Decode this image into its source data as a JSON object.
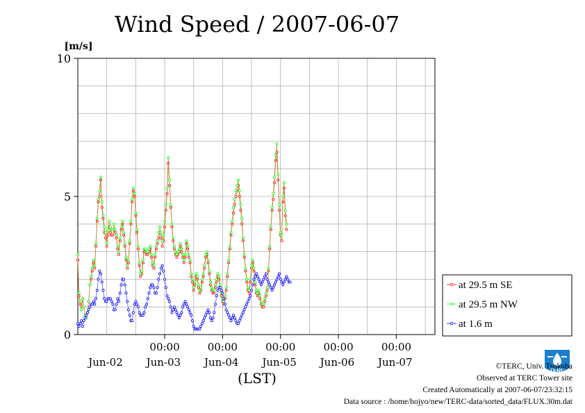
{
  "chart_data": {
    "type": "line",
    "title": "Wind Speed / 2007-06-07",
    "ylabel": "[m/s]",
    "xlabel": "(LST)",
    "ylim": [
      0,
      10
    ],
    "yticks": [
      0,
      5,
      10
    ],
    "xlim": [
      "2007-06-01T12:00",
      "2007-06-07T16:00"
    ],
    "x_time_ticks": [
      "00:00",
      "00:00",
      "00:00",
      "00:00",
      "00:00"
    ],
    "x_date_labels": [
      "Jun-02",
      "Jun-03",
      "Jun-04",
      "Jun-05",
      "Jun-06",
      "Jun-07"
    ],
    "grid": true,
    "legend_position": "right",
    "series": [
      {
        "name": "at 29.5 m SE",
        "color": "#ff0000",
        "x_start": "2007-06-01T12:00",
        "step_minutes": 30,
        "values": [
          2.7,
          1.4,
          1.1,
          0.9,
          1.3,
          1.0,
          0.7,
          0.6,
          0.8,
          1.2,
          1.8,
          2.0,
          2.3,
          2.6,
          2.4,
          3.2,
          4.1,
          4.8,
          5.0,
          5.6,
          4.6,
          4.2,
          3.7,
          3.5,
          3.2,
          3.6,
          3.9,
          3.7,
          3.6,
          3.6,
          3.8,
          3.7,
          3.5,
          3.1,
          2.9,
          3.4,
          3.8,
          4.0,
          3.6,
          3.2,
          2.7,
          2.4,
          2.6,
          3.3,
          4.0,
          4.8,
          5.2,
          5.0,
          4.3,
          3.7,
          3.1,
          2.5,
          2.1,
          2.2,
          2.6,
          3.0,
          3.0,
          2.9,
          2.9,
          3.0,
          3.1,
          2.8,
          2.5,
          2.4,
          2.8,
          3.1,
          3.3,
          3.5,
          3.7,
          3.5,
          3.2,
          3.4,
          3.9,
          4.5,
          5.1,
          6.2,
          5.4,
          4.6,
          3.9,
          3.4,
          3.1,
          2.9,
          2.8,
          2.9,
          3.0,
          3.2,
          3.0,
          2.8,
          2.6,
          2.8,
          3.3,
          3.1,
          2.8,
          2.6,
          2.1,
          1.9,
          1.6,
          1.8,
          2.1,
          2.0,
          1.7,
          1.5,
          1.6,
          1.9,
          2.1,
          2.4,
          2.8,
          2.9,
          2.6,
          2.2,
          1.8,
          1.6,
          1.5,
          1.5,
          1.7,
          1.9,
          2.1,
          2.0,
          1.7,
          1.4,
          1.2,
          1.1,
          1.3,
          1.6,
          2.1,
          2.6,
          3.1,
          3.6,
          4.0,
          4.4,
          4.7,
          5.0,
          5.2,
          5.4,
          5.0,
          4.5,
          4.0,
          3.4,
          2.8,
          2.3,
          1.9,
          1.6,
          1.5,
          1.9,
          2.4,
          2.6,
          2.3,
          1.8,
          1.5,
          1.4,
          1.5,
          1.3,
          1.1,
          1.0,
          1.0,
          1.2,
          1.4,
          1.6,
          2.3,
          3.1,
          3.8,
          4.5,
          4.9,
          5.5,
          6.3,
          6.6,
          5.6,
          4.5,
          3.6,
          3.4,
          4.8,
          5.3,
          4.3,
          3.8
        ]
      },
      {
        "name": "at 29.5 m NW",
        "color": "#00ff00",
        "x_start": "2007-06-01T12:00",
        "step_minutes": 30,
        "values": [
          2.9,
          1.5,
          1.2,
          0.9,
          1.3,
          1.0,
          0.7,
          0.6,
          0.8,
          1.2,
          1.8,
          2.1,
          2.4,
          2.7,
          2.5,
          3.3,
          4.2,
          4.9,
          5.2,
          5.7,
          4.8,
          4.3,
          3.9,
          3.7,
          3.3,
          3.8,
          4.1,
          3.9,
          3.8,
          3.8,
          4.0,
          3.8,
          3.6,
          3.2,
          3.0,
          3.5,
          3.9,
          4.1,
          3.7,
          3.3,
          2.8,
          2.5,
          2.7,
          3.4,
          4.1,
          4.9,
          5.3,
          5.1,
          4.4,
          3.8,
          3.2,
          2.6,
          2.2,
          2.3,
          2.7,
          3.1,
          3.1,
          3.0,
          3.0,
          3.1,
          3.2,
          2.9,
          2.6,
          2.5,
          2.9,
          3.2,
          3.4,
          3.7,
          3.9,
          3.7,
          3.4,
          3.6,
          4.1,
          4.7,
          5.3,
          6.4,
          5.6,
          4.7,
          4.0,
          3.5,
          3.2,
          3.0,
          2.9,
          3.0,
          3.1,
          3.3,
          3.1,
          2.9,
          2.7,
          2.9,
          3.4,
          3.2,
          2.9,
          2.7,
          2.2,
          2.0,
          1.7,
          1.9,
          2.2,
          2.1,
          1.8,
          1.6,
          1.7,
          2.0,
          2.2,
          2.5,
          2.9,
          3.0,
          2.7,
          2.3,
          1.9,
          1.7,
          1.6,
          1.6,
          1.8,
          2.0,
          2.2,
          2.1,
          1.8,
          1.5,
          1.3,
          1.2,
          1.4,
          1.7,
          2.2,
          2.7,
          3.2,
          3.7,
          4.1,
          4.6,
          4.9,
          5.2,
          5.4,
          5.6,
          5.2,
          4.7,
          4.2,
          3.5,
          2.9,
          2.4,
          2.0,
          1.7,
          1.6,
          2.0,
          2.5,
          2.7,
          2.4,
          1.9,
          1.6,
          1.5,
          1.6,
          1.4,
          1.2,
          1.1,
          1.1,
          1.3,
          1.5,
          1.7,
          2.4,
          3.2,
          3.9,
          4.6,
          5.1,
          5.7,
          6.5,
          6.9,
          5.8,
          4.7,
          3.7,
          3.6,
          5.0,
          5.5,
          4.5,
          4.0
        ]
      },
      {
        "name": "at 1.6 m",
        "color": "#0000ff",
        "x_start": "2007-06-01T12:00",
        "step_minutes": 30,
        "values": [
          0.4,
          0.3,
          0.4,
          0.5,
          0.3,
          0.5,
          0.6,
          0.7,
          0.8,
          0.9,
          1.0,
          1.1,
          1.1,
          1.2,
          1.1,
          1.3,
          1.6,
          2.0,
          2.3,
          2.2,
          1.9,
          1.6,
          1.3,
          1.2,
          1.2,
          1.3,
          1.3,
          1.3,
          1.2,
          1.1,
          0.9,
          0.9,
          1.1,
          1.3,
          1.2,
          1.5,
          1.8,
          2.0,
          2.0,
          1.8,
          1.5,
          1.2,
          0.9,
          0.7,
          0.5,
          0.5,
          0.8,
          1.1,
          1.2,
          1.1,
          1.0,
          0.8,
          0.7,
          0.7,
          0.7,
          0.8,
          1.0,
          1.1,
          1.3,
          1.5,
          1.7,
          1.8,
          1.8,
          1.7,
          1.5,
          1.5,
          1.7,
          2.0,
          2.2,
          2.4,
          2.5,
          2.3,
          2.0,
          1.7,
          1.4,
          1.3,
          1.2,
          1.0,
          0.8,
          0.9,
          1.0,
          0.9,
          0.8,
          0.7,
          0.6,
          0.7,
          0.8,
          1.0,
          1.1,
          1.2,
          1.1,
          1.0,
          0.9,
          0.8,
          0.7,
          0.5,
          0.3,
          0.2,
          0.2,
          0.2,
          0.2,
          0.2,
          0.3,
          0.4,
          0.5,
          0.6,
          0.7,
          0.8,
          0.9,
          0.8,
          0.6,
          0.5,
          0.6,
          0.8,
          1.1,
          1.4,
          1.6,
          1.7,
          1.7,
          1.6,
          1.5,
          1.3,
          1.1,
          0.9,
          0.8,
          0.7,
          0.6,
          0.5,
          0.6,
          0.7,
          0.6,
          0.5,
          0.4,
          0.4,
          0.5,
          0.6,
          0.7,
          0.8,
          0.9,
          1.0,
          1.1,
          1.2,
          1.3,
          1.4,
          1.6,
          1.8,
          2.0,
          2.1,
          2.2,
          2.1,
          2.0,
          1.9,
          1.8,
          1.9,
          2.0,
          2.1,
          2.2,
          2.0,
          1.9,
          1.8,
          1.7,
          1.6,
          1.7,
          1.8,
          1.9,
          2.0,
          2.1,
          2.2,
          2.0,
          1.9,
          1.8,
          1.9,
          2.0,
          2.1,
          2.0,
          1.9,
          1.9
        ]
      }
    ]
  },
  "credits": {
    "copyright": "©TERC, Univ. Tsukuba",
    "site": "Observed at TERC Tower site",
    "created": "Created Automatically at 2007-06-07/23:32:15",
    "source": "Data source : /home/hojyo/new/TERC-data/sorted_data/FLUX.30m.dat"
  },
  "logo": {
    "text": "TERC",
    "color": "#1a7fd0"
  }
}
